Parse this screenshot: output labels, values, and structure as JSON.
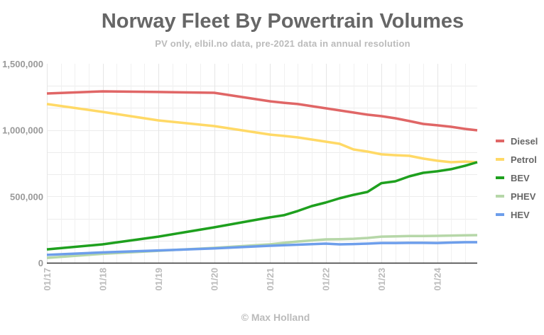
{
  "chart_data": {
    "type": "line",
    "title": "Norway Fleet By Powertrain Volumes",
    "subtitle": "PV only, elbil.no data, pre-2021 data in annual resolution",
    "footer": "© Max Holland",
    "xlabel": "",
    "ylabel": "",
    "ylim": [
      0,
      1500000
    ],
    "xlim": [
      2017.0,
      2024.72
    ],
    "y_ticks": [
      {
        "value": 0,
        "label": "0"
      },
      {
        "value": 500000,
        "label": "500,000"
      },
      {
        "value": 1000000,
        "label": "1,000,000"
      },
      {
        "value": 1500000,
        "label": "1,500,000"
      }
    ],
    "y_minor_step": 166667,
    "x_ticks": [
      {
        "value": 2017,
        "label": "01/17"
      },
      {
        "value": 2018,
        "label": "01/18"
      },
      {
        "value": 2019,
        "label": "01/19"
      },
      {
        "value": 2020,
        "label": "01/20"
      },
      {
        "value": 2021,
        "label": "01/21"
      },
      {
        "value": 2022,
        "label": "01/22"
      },
      {
        "value": 2023,
        "label": "01/23"
      },
      {
        "value": 2024,
        "label": "01/24"
      }
    ],
    "grid": true,
    "legend_position": "right",
    "x": [
      2017,
      2018,
      2019,
      2020,
      2021,
      2021.25,
      2021.5,
      2021.75,
      2022,
      2022.25,
      2022.5,
      2022.75,
      2023,
      2023.25,
      2023.5,
      2023.75,
      2024,
      2024.25,
      2024.5,
      2024.72
    ],
    "series": [
      {
        "name": "Diesel",
        "color": "#e06666",
        "values": [
          1276000,
          1292000,
          1287000,
          1281000,
          1217000,
          1206000,
          1196000,
          1180000,
          1164000,
          1148000,
          1132000,
          1116000,
          1105000,
          1089000,
          1068000,
          1046000,
          1036000,
          1025000,
          1009000,
          998000
        ]
      },
      {
        "name": "Petrol",
        "color": "#ffd966",
        "values": [
          1196000,
          1137000,
          1073000,
          1030000,
          966000,
          956000,
          945000,
          929000,
          913000,
          897000,
          854000,
          838000,
          817000,
          811000,
          806000,
          785000,
          769000,
          758000,
          763000,
          758000
        ]
      },
      {
        "name": "BEV",
        "color": "#1ea01e",
        "values": [
          101000,
          139000,
          197000,
          267000,
          342000,
          358000,
          390000,
          427000,
          454000,
          486000,
          512000,
          534000,
          600000,
          614000,
          651000,
          678000,
          689000,
          705000,
          731000,
          758000
        ]
      },
      {
        "name": "PHEV",
        "color": "#b6d7a8",
        "values": [
          37000,
          67000,
          90000,
          112000,
          139000,
          150000,
          160000,
          168000,
          176000,
          178000,
          181000,
          187000,
          197000,
          199000,
          201000,
          202000,
          203000,
          205000,
          207000,
          208000
        ]
      },
      {
        "name": "HEV",
        "color": "#6d9eeb",
        "values": [
          59000,
          78000,
          93000,
          108000,
          128000,
          132000,
          136000,
          140000,
          144000,
          139000,
          141000,
          144000,
          149000,
          149000,
          150000,
          150000,
          149000,
          152000,
          155000,
          155000
        ]
      }
    ]
  }
}
